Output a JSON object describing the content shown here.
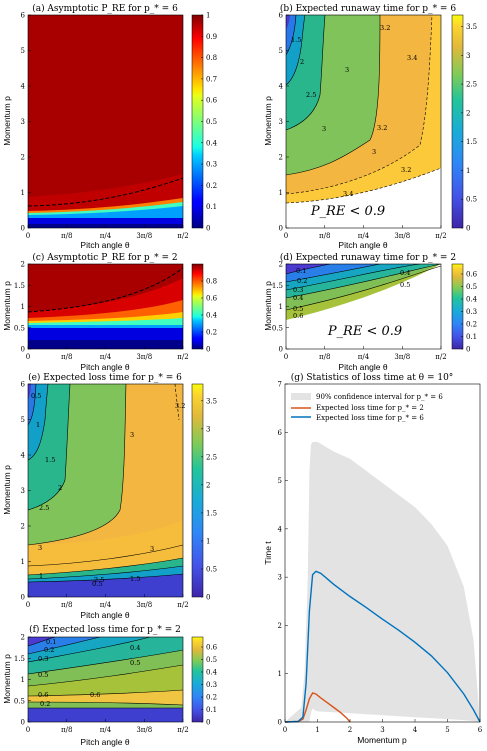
{
  "chart_data": [
    {
      "id": "a",
      "type": "heatmap",
      "title": "(a) Asymptotic P_RE for p_* = 6",
      "xlabel": "Pitch angle θ",
      "ylabel": "Momentum p",
      "xticks": [
        "0",
        "π/8",
        "π/4",
        "3π/8",
        "π/2"
      ],
      "yticks": [
        0,
        1,
        2,
        3,
        4,
        5,
        6
      ],
      "ylim": [
        0,
        6
      ],
      "colormap": "jet",
      "colorbar": {
        "min": 0,
        "max": 1,
        "ticks": [
          0,
          0.1,
          0.2,
          0.3,
          0.4,
          0.5,
          0.6,
          0.7,
          0.8,
          0.9,
          1
        ]
      },
      "contour": {
        "value": 0.9,
        "style": "dashed",
        "p_at_theta": [
          [
            0,
            0.62
          ],
          [
            0.39,
            0.7
          ],
          [
            0.79,
            0.85
          ],
          [
            1.18,
            1.06
          ],
          [
            1.57,
            1.38
          ]
        ]
      }
    },
    {
      "id": "b",
      "type": "heatmap",
      "title": "(b) Expected runaway time for p_* = 6",
      "xlabel": "Pitch angle θ",
      "ylabel": "Momentum p",
      "xticks": [
        "0",
        "π/8",
        "π/4",
        "3π/8",
        "π/2"
      ],
      "yticks": [
        0,
        1,
        2,
        3,
        4,
        5,
        6
      ],
      "ylim": [
        0,
        6
      ],
      "colormap": "parula",
      "colorbar": {
        "min": 0,
        "max": 3.7,
        "ticks": [
          0,
          0.5,
          1,
          1.5,
          2,
          2.5,
          3,
          3.5
        ]
      },
      "contour_labels": [
        "1.5",
        "2",
        "2.5",
        "3",
        "3",
        "3",
        "3.2",
        "3.2",
        "3.2",
        "3.4",
        "3.4"
      ],
      "region_label": "P_RE < 0.9"
    },
    {
      "id": "c",
      "type": "heatmap",
      "title": "(c) Asymptotic P_RE for p_* = 2",
      "xlabel": "Pitch angle θ",
      "ylabel": "Momentum p",
      "xticks": [
        "0",
        "π/8",
        "π/4",
        "3π/8",
        "π/2"
      ],
      "yticks": [
        0,
        0.5,
        1,
        1.5,
        2
      ],
      "ylim": [
        0,
        2
      ],
      "colormap": "jet",
      "colorbar": {
        "min": 0,
        "max": 1,
        "ticks": [
          0,
          0.2,
          0.4,
          0.6,
          0.8
        ]
      },
      "contour": {
        "value": 0.9,
        "style": "dashed",
        "p_at_theta": [
          [
            0,
            0.9
          ],
          [
            0.39,
            1.0
          ],
          [
            0.79,
            1.2
          ],
          [
            1.18,
            1.45
          ],
          [
            1.57,
            1.95
          ]
        ]
      }
    },
    {
      "id": "d",
      "type": "heatmap",
      "title": "(d) Expected runaway time for p_* = 2",
      "xlabel": "Pitch angle θ",
      "ylabel": "Momentum p",
      "xticks": [
        "0",
        "π/8",
        "π/4",
        "3π/8",
        "π/2"
      ],
      "yticks": [
        0,
        0.5,
        1,
        1.5,
        2
      ],
      "ylim": [
        0,
        2
      ],
      "colormap": "parula",
      "colorbar": {
        "min": 0,
        "max": 0.68,
        "ticks": [
          0,
          0.1,
          0.2,
          0.3,
          0.4,
          0.5,
          0.6
        ]
      },
      "contour_labels": [
        "0.1",
        "0.2",
        "0.3",
        "0.4",
        "0.4",
        "0.5",
        "0.5",
        "0.6"
      ],
      "region_label": "P_RE < 0.9"
    },
    {
      "id": "e",
      "type": "heatmap",
      "title": "(e) Expected loss time for p_* = 6",
      "xlabel": "Pitch angle θ",
      "ylabel": "Momentum p",
      "xticks": [
        "0",
        "π/8",
        "π/4",
        "3π/8",
        "π/2"
      ],
      "yticks": [
        0,
        1,
        2,
        3,
        4,
        5,
        6
      ],
      "ylim": [
        0,
        6
      ],
      "colormap": "parula",
      "colorbar": {
        "min": 0,
        "max": 3.8,
        "ticks": [
          0,
          0.5,
          1,
          1.5,
          2,
          2.5,
          3,
          3.5
        ]
      },
      "contour_labels": [
        "0.5",
        "1",
        "1.5",
        "2",
        "2.5",
        "2.5",
        "3",
        "3",
        "3",
        "3.2",
        "0.5",
        "1",
        "1.5"
      ]
    },
    {
      "id": "f",
      "type": "heatmap",
      "title": "(f) Expected loss time for p_* = 2",
      "xlabel": "Pitch angle θ",
      "ylabel": "Momentum p",
      "xticks": [
        "0",
        "π/8",
        "π/4",
        "3π/8",
        "π/2"
      ],
      "yticks": [
        0,
        0.5,
        1,
        1.5,
        2
      ],
      "ylim": [
        0,
        2
      ],
      "colormap": "parula",
      "colorbar": {
        "min": 0,
        "max": 0.68,
        "ticks": [
          0,
          0.1,
          0.2,
          0.3,
          0.4,
          0.5,
          0.6
        ]
      },
      "contour_labels": [
        "0.1",
        "0.2",
        "0.3",
        "0.4",
        "0.5",
        "0.5",
        "0.6",
        "0.6",
        "0.2"
      ]
    },
    {
      "id": "g",
      "type": "line",
      "title": "(g) Statistics of loss time at θ = 10°",
      "xlabel": "Momentum p",
      "ylabel": "Time t",
      "xlim": [
        0,
        6
      ],
      "ylim": [
        0,
        7
      ],
      "xticks": [
        0,
        1,
        2,
        3,
        4,
        5,
        6
      ],
      "yticks": [
        0,
        1,
        2,
        3,
        4,
        5,
        6,
        7
      ],
      "legend_position": "top-left",
      "band": {
        "name": "90% confidence interval for p_* = 6",
        "color": "#e3e3e3",
        "x": [
          0,
          0.5,
          0.6,
          0.7,
          0.75,
          0.8,
          0.85,
          0.9,
          1.0,
          1.5,
          2.0,
          2.5,
          3.0,
          3.5,
          4.0,
          4.5,
          5.0,
          5.5,
          5.8,
          6.0
        ],
        "lower": [
          0,
          0,
          0,
          0,
          0,
          0.2,
          0.28,
          0.25,
          0.22,
          0.2,
          0.18,
          0.16,
          0.14,
          0.12,
          0.1,
          0.08,
          0.06,
          0.04,
          0.02,
          0
        ],
        "upper": [
          0,
          0.3,
          1.0,
          3.0,
          5.2,
          5.75,
          5.8,
          5.8,
          5.8,
          5.6,
          5.45,
          5.2,
          4.95,
          4.7,
          4.45,
          4.1,
          3.65,
          2.8,
          1.7,
          0
        ]
      },
      "series": [
        {
          "name": "Expected loss time for p_* = 2",
          "color": "#d95319",
          "x": [
            0,
            0.4,
            0.55,
            0.65,
            0.75,
            0.85,
            0.95,
            1.1,
            1.3,
            1.5,
            1.7,
            1.9,
            2.0
          ],
          "y": [
            0,
            0.01,
            0.06,
            0.25,
            0.48,
            0.6,
            0.58,
            0.5,
            0.4,
            0.3,
            0.2,
            0.08,
            0
          ]
        },
        {
          "name": "Expected loss time for p_* = 6",
          "color": "#0072bd",
          "x": [
            0,
            0.4,
            0.55,
            0.65,
            0.75,
            0.85,
            0.95,
            1.1,
            1.5,
            2.0,
            2.5,
            3.0,
            3.5,
            4.0,
            4.5,
            5.0,
            5.5,
            5.8,
            6.0
          ],
          "y": [
            0,
            0.01,
            0.1,
            0.8,
            2.3,
            3.05,
            3.12,
            3.08,
            2.85,
            2.6,
            2.37,
            2.13,
            1.9,
            1.65,
            1.37,
            1.02,
            0.58,
            0.25,
            0
          ]
        }
      ]
    }
  ]
}
